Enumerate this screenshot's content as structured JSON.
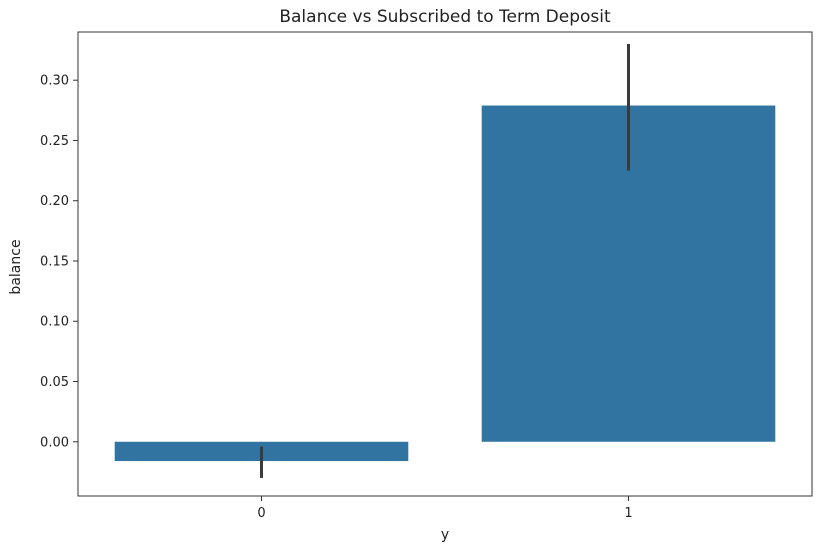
{
  "chart_data": {
    "type": "bar",
    "title": "Balance vs Subscribed to Term Deposit",
    "xlabel": "y",
    "ylabel": "balance",
    "categories": [
      "0",
      "1"
    ],
    "values": [
      -0.016,
      0.279
    ],
    "error_bars": [
      [
        -0.03,
        -0.004
      ],
      [
        0.225,
        0.33
      ]
    ],
    "ylim": [
      -0.045,
      0.34
    ],
    "yticks": [
      0.0,
      0.05,
      0.1,
      0.15,
      0.2,
      0.25,
      0.3
    ],
    "ytick_labels": [
      "0.00",
      "0.05",
      "0.10",
      "0.15",
      "0.20",
      "0.25",
      "0.30"
    ],
    "grid": false,
    "bar_color": "#3274a1",
    "errorbar_color": "#3a3a3a"
  }
}
